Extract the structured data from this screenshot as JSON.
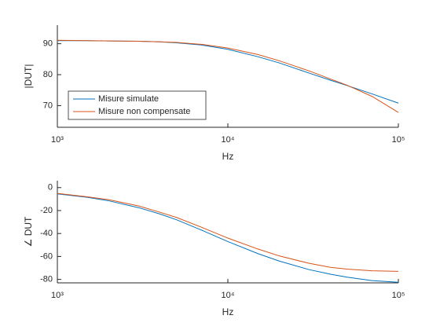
{
  "chart_data": [
    {
      "type": "line",
      "xlabel": "Hz",
      "ylabel": "|DUT|",
      "log_x": true,
      "legend": "lower left",
      "x": [
        1000,
        1500,
        2000,
        3000,
        4000,
        5000,
        7000,
        10000,
        15000,
        20000,
        30000,
        40000,
        50000,
        70000,
        100000
      ],
      "series": [
        {
          "name": "Misure simulate",
          "color": "#0072BD",
          "values": [
            91.0,
            91.0,
            90.9,
            90.8,
            90.6,
            90.3,
            89.6,
            88.2,
            85.8,
            83.8,
            80.5,
            78.2,
            76.5,
            73.8,
            70.8
          ]
        },
        {
          "name": "Misure non compensate",
          "color": "#D95319",
          "values": [
            91.1,
            91.0,
            90.9,
            90.8,
            90.6,
            90.4,
            89.8,
            88.6,
            86.5,
            84.5,
            81.2,
            78.6,
            76.6,
            73.0,
            67.8
          ]
        }
      ],
      "xlim": [
        1000,
        100000
      ],
      "ylim": [
        63,
        96
      ],
      "xticks": [
        {
          "value": 1000,
          "label": "10³"
        },
        {
          "value": 10000,
          "label": "10⁴"
        },
        {
          "value": 100000,
          "label": "10⁵"
        }
      ],
      "yticks": [
        70,
        80,
        90
      ]
    },
    {
      "type": "line",
      "xlabel": "Hz",
      "ylabel": "∠ DUT",
      "log_x": true,
      "x": [
        1000,
        1500,
        2000,
        3000,
        4000,
        5000,
        7000,
        10000,
        15000,
        20000,
        30000,
        40000,
        50000,
        70000,
        100000
      ],
      "series": [
        {
          "name": "Misure simulate",
          "color": "#0072BD",
          "values": [
            -5.5,
            -8.5,
            -11.5,
            -17.5,
            -23,
            -28,
            -37,
            -47,
            -57.5,
            -64,
            -71.5,
            -75.5,
            -78,
            -81,
            -82.5
          ]
        },
        {
          "name": "Misure non compensate",
          "color": "#D95319",
          "values": [
            -5,
            -8,
            -10.5,
            -16,
            -21.5,
            -26,
            -34.5,
            -44,
            -53.5,
            -59.5,
            -66,
            -69.5,
            -71,
            -72.5,
            -73
          ]
        }
      ],
      "xlim": [
        1000,
        100000
      ],
      "ylim": [
        -83,
        6
      ],
      "xticks": [
        {
          "value": 1000,
          "label": "10³"
        },
        {
          "value": 10000,
          "label": "10⁴"
        },
        {
          "value": 100000,
          "label": "10⁵"
        }
      ],
      "yticks": [
        -80,
        -60,
        -40,
        -20,
        0
      ]
    }
  ]
}
